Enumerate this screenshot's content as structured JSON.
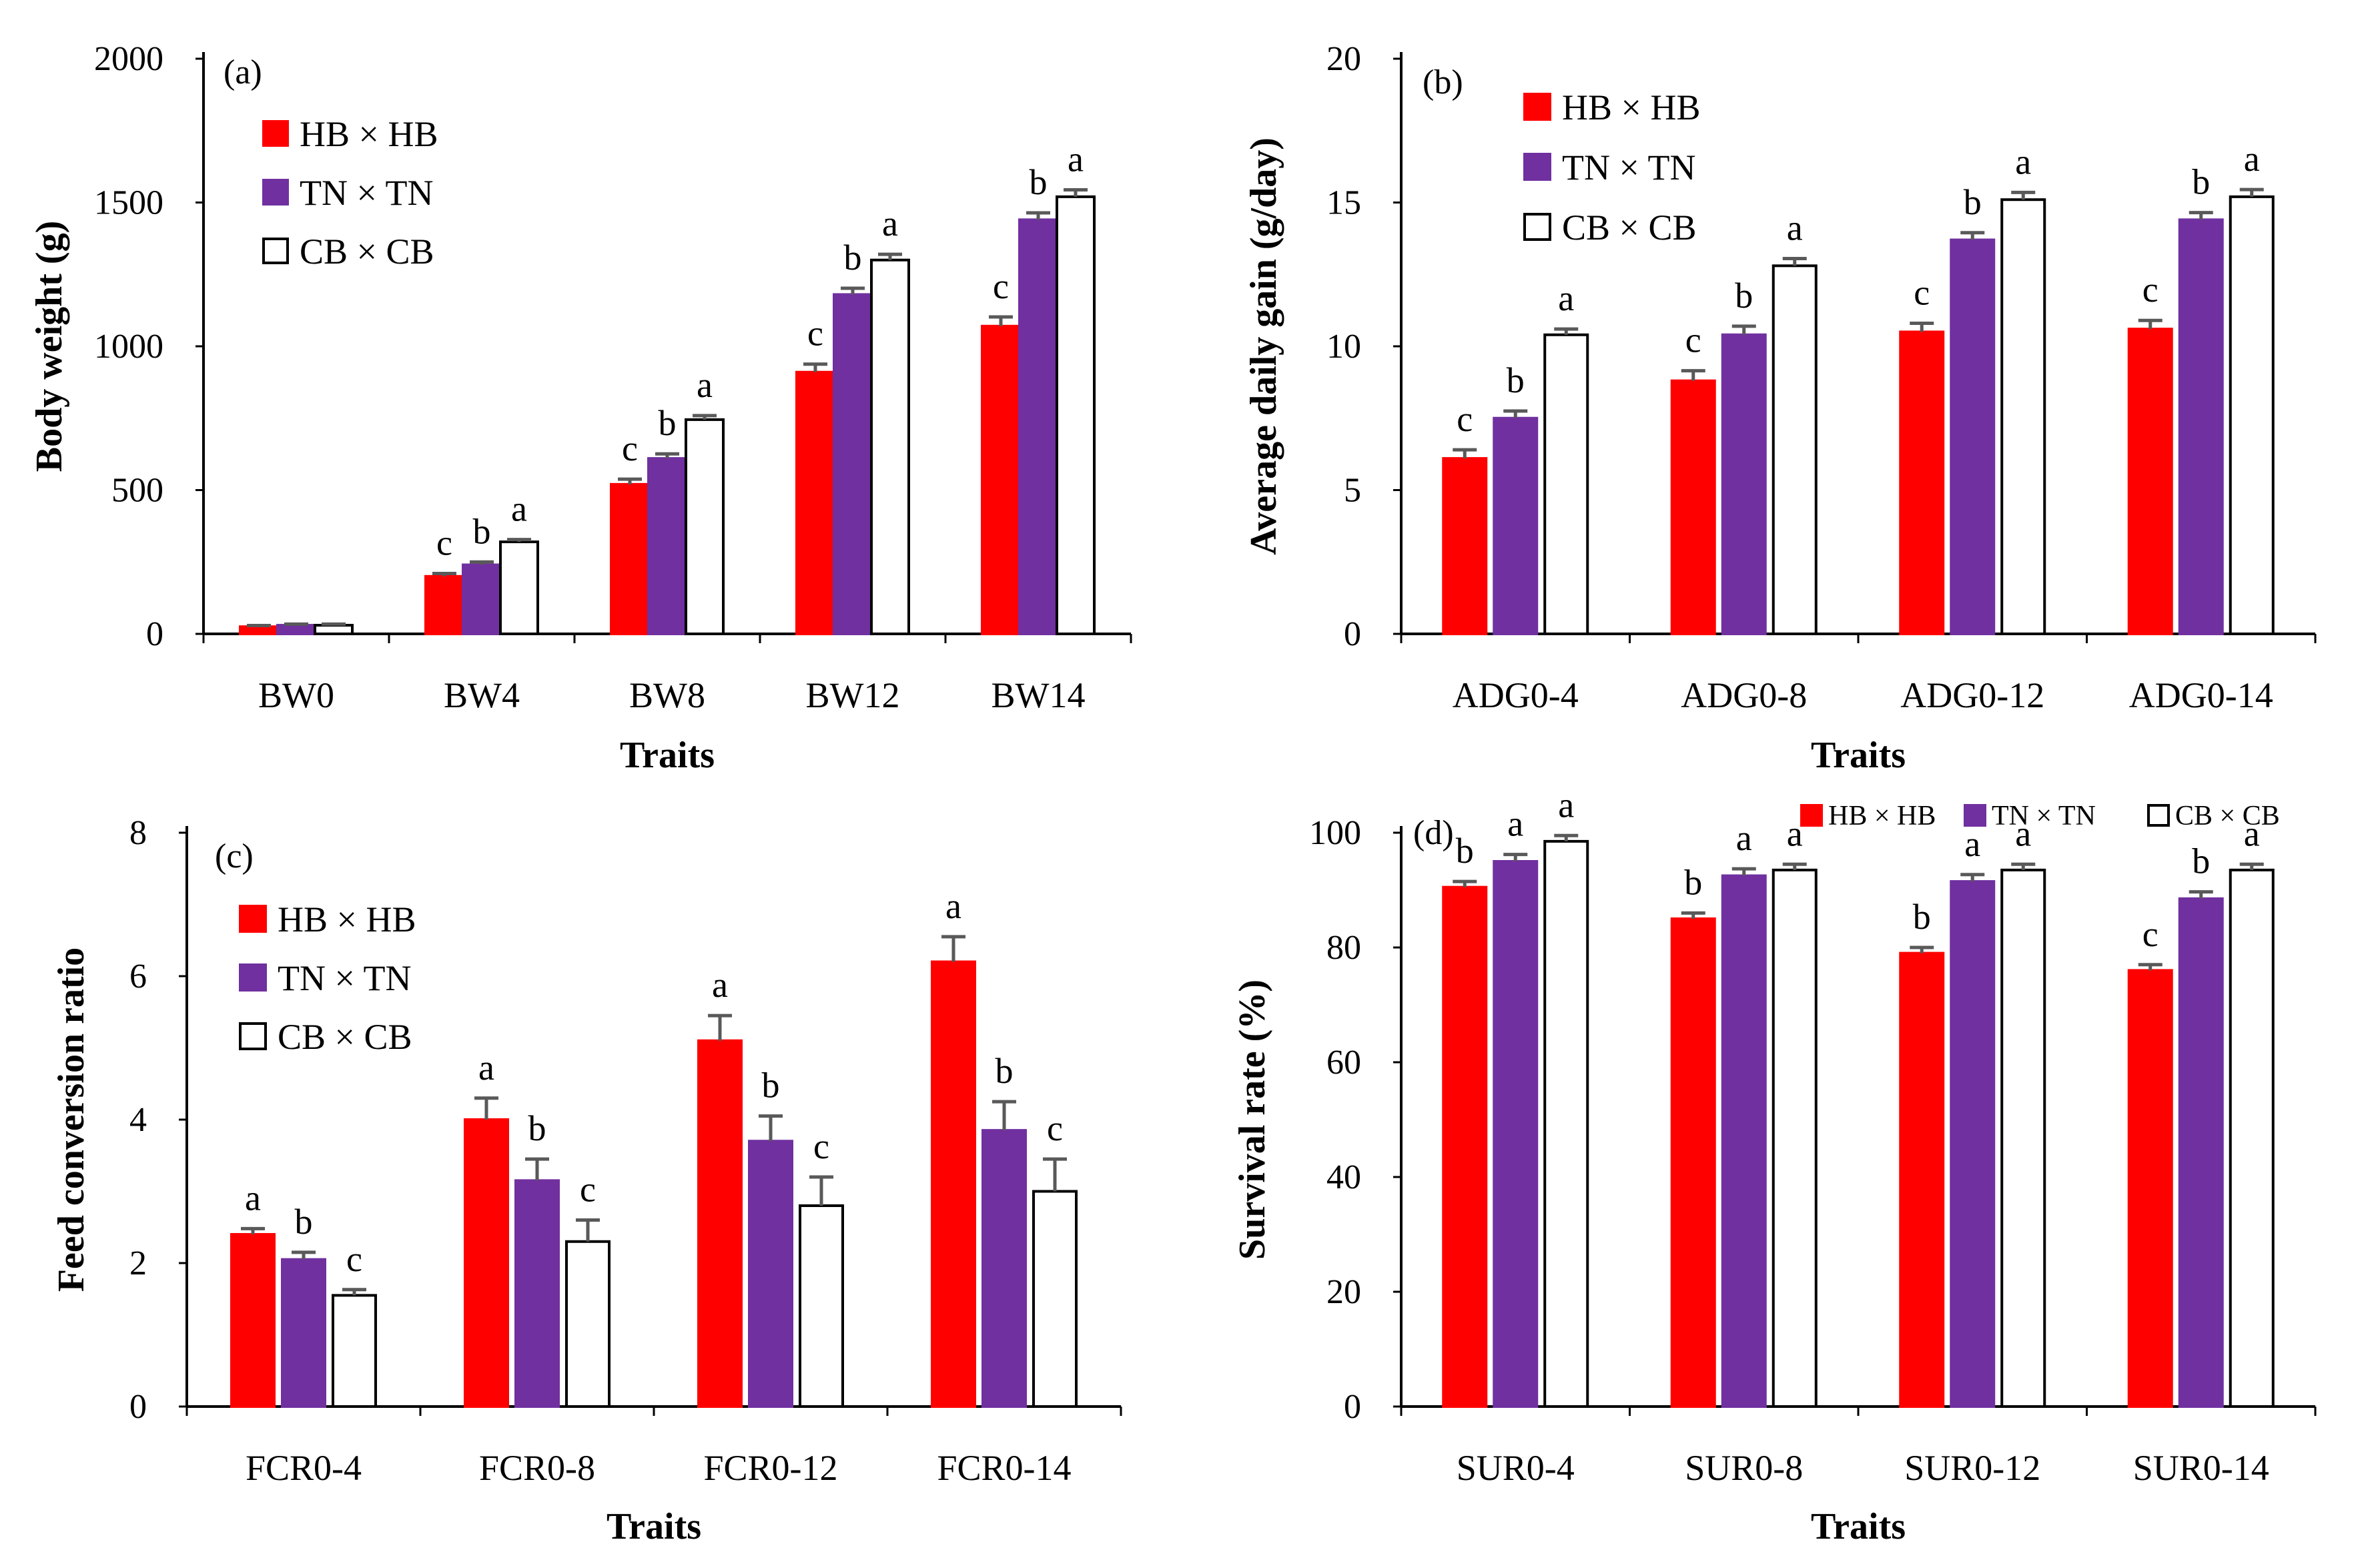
{
  "series_legend": [
    {
      "name": "HB × HB",
      "fill": "#ff0000",
      "stroke": "#ff0000"
    },
    {
      "name": "TN × TN",
      "fill": "#7030a0",
      "stroke": "#7030a0"
    },
    {
      "name": "CB × CB",
      "fill": "#ffffff",
      "stroke": "#000000"
    }
  ],
  "error_color": "#595959",
  "chart_data": [
    {
      "type": "bar",
      "panel": "(a)",
      "title": "",
      "xlabel": "Traits",
      "ylabel": "Body weight (g)",
      "ylim": [
        0,
        2000
      ],
      "yticks": [
        "0",
        "500",
        "1000",
        "1500",
        "2000"
      ],
      "categories": [
        "BW0",
        "BW4",
        "BW8",
        "BW12",
        "BW14"
      ],
      "legend": "top-left",
      "series": [
        {
          "name": "HB × HB",
          "values": [
            25,
            200,
            520,
            910,
            1070
          ],
          "errors": [
            4,
            10,
            18,
            28,
            32
          ],
          "labels": [
            "",
            "c",
            "c",
            "c",
            "c"
          ]
        },
        {
          "name": "TN × TN",
          "values": [
            30,
            240,
            610,
            1180,
            1440
          ],
          "errors": [
            4,
            10,
            16,
            22,
            24
          ],
          "labels": [
            "",
            "b",
            "b",
            "b",
            "b"
          ]
        },
        {
          "name": "CB × CB",
          "values": [
            30,
            320,
            745,
            1300,
            1520
          ],
          "errors": [
            4,
            8,
            14,
            20,
            24
          ],
          "labels": [
            "",
            "a",
            "a",
            "a",
            "a"
          ]
        }
      ]
    },
    {
      "type": "bar",
      "panel": "(b)",
      "title": "",
      "xlabel": "Traits",
      "ylabel": "Average daily gain (g/day)",
      "ylim": [
        0,
        20
      ],
      "yticks": [
        "0",
        "5",
        "10",
        "15",
        "20"
      ],
      "categories": [
        "ADG0-4",
        "ADG0-8",
        "ADG0-12",
        "ADG0-14"
      ],
      "legend": "top-left",
      "series": [
        {
          "name": "HB × HB",
          "values": [
            6.1,
            8.8,
            10.5,
            10.6
          ],
          "errors": [
            0.3,
            0.35,
            0.3,
            0.3
          ],
          "labels": [
            "c",
            "c",
            "c",
            "c"
          ]
        },
        {
          "name": "TN × TN",
          "values": [
            7.5,
            10.4,
            13.7,
            14.4
          ],
          "errors": [
            0.25,
            0.3,
            0.25,
            0.25
          ],
          "labels": [
            "b",
            "b",
            "b",
            "b"
          ]
        },
        {
          "name": "CB × CB",
          "values": [
            10.4,
            12.8,
            15.1,
            15.2
          ],
          "errors": [
            0.2,
            0.25,
            0.25,
            0.25
          ],
          "labels": [
            "a",
            "a",
            "a",
            "a"
          ]
        }
      ]
    },
    {
      "type": "bar",
      "panel": "(c)",
      "title": "",
      "xlabel": "Traits",
      "ylabel": "Feed conversion ratio",
      "ylim": [
        0,
        8
      ],
      "yticks": [
        "0",
        "2",
        "4",
        "6",
        "8"
      ],
      "categories": [
        "FCR0-4",
        "FCR0-8",
        "FCR0-12",
        "FCR0-14"
      ],
      "legend": "top-left",
      "series": [
        {
          "name": "HB × HB",
          "values": [
            2.4,
            4.0,
            5.1,
            6.2
          ],
          "errors": [
            0.08,
            0.3,
            0.35,
            0.35
          ],
          "labels": [
            "a",
            "a",
            "a",
            "a"
          ]
        },
        {
          "name": "TN × TN",
          "values": [
            2.05,
            3.15,
            3.7,
            3.85
          ],
          "errors": [
            0.1,
            0.3,
            0.35,
            0.4
          ],
          "labels": [
            "b",
            "b",
            "b",
            "b"
          ]
        },
        {
          "name": "CB × CB",
          "values": [
            1.55,
            2.3,
            2.8,
            3.0
          ],
          "errors": [
            0.08,
            0.3,
            0.4,
            0.45
          ],
          "labels": [
            "c",
            "c",
            "c",
            "c"
          ]
        }
      ]
    },
    {
      "type": "bar",
      "panel": "(d)",
      "title": "",
      "xlabel": "Traits",
      "ylabel": "Survival rate (%)",
      "ylim": [
        0,
        100
      ],
      "yticks": [
        "0",
        "20",
        "40",
        "60",
        "80",
        "100"
      ],
      "categories": [
        "SUR0-4",
        "SUR0-8",
        "SUR0-12",
        "SUR0-14"
      ],
      "legend": "top-right",
      "series": [
        {
          "name": "HB × HB",
          "values": [
            90.5,
            85,
            79,
            76
          ],
          "errors": [
            1,
            1,
            1,
            1
          ],
          "labels": [
            "b",
            "b",
            "b",
            "c"
          ]
        },
        {
          "name": "TN × TN",
          "values": [
            95,
            92.5,
            91.5,
            88.5
          ],
          "errors": [
            1.2,
            1.2,
            1.2,
            1.2
          ],
          "labels": [
            "a",
            "a",
            "a",
            "b"
          ]
        },
        {
          "name": "CB × CB",
          "values": [
            98.5,
            93.5,
            93.5,
            93.5
          ],
          "errors": [
            1,
            1,
            1,
            1
          ],
          "labels": [
            "a",
            "a",
            "a",
            "a"
          ]
        }
      ]
    }
  ]
}
